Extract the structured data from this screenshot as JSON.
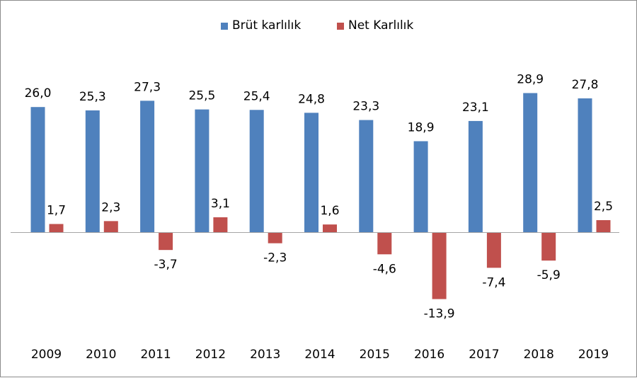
{
  "chart_data": {
    "type": "bar",
    "title": "",
    "xlabel": "",
    "ylabel": "",
    "categories": [
      "2009",
      "2010",
      "2011",
      "2012",
      "2013",
      "2014",
      "2015",
      "2016",
      "2017",
      "2018",
      "2019"
    ],
    "series": [
      {
        "name": "Brüt karlılık",
        "color": "#4f81bd",
        "values": [
          26.0,
          25.3,
          27.3,
          25.5,
          25.4,
          24.8,
          23.3,
          18.9,
          23.1,
          28.9,
          27.8
        ],
        "labels": [
          "26,0",
          "25,3",
          "27,3",
          "25,5",
          "25,4",
          "24,8",
          "23,3",
          "18,9",
          "23,1",
          "28,9",
          "27,8"
        ]
      },
      {
        "name": "Net Karlılık",
        "color": "#c0504d",
        "values": [
          1.7,
          2.3,
          -3.7,
          3.1,
          -2.3,
          1.6,
          -4.6,
          -13.9,
          -7.4,
          -5.9,
          2.5
        ],
        "labels": [
          "1,7",
          "2,3",
          "-3,7",
          "3,1",
          "-2,3",
          "1,6",
          "-4,6",
          "-13,9",
          "-7,4",
          "-5,9",
          "2,5"
        ]
      }
    ],
    "legend_position": "top",
    "grid": false,
    "axis_line_color": "#a6a6a6"
  }
}
